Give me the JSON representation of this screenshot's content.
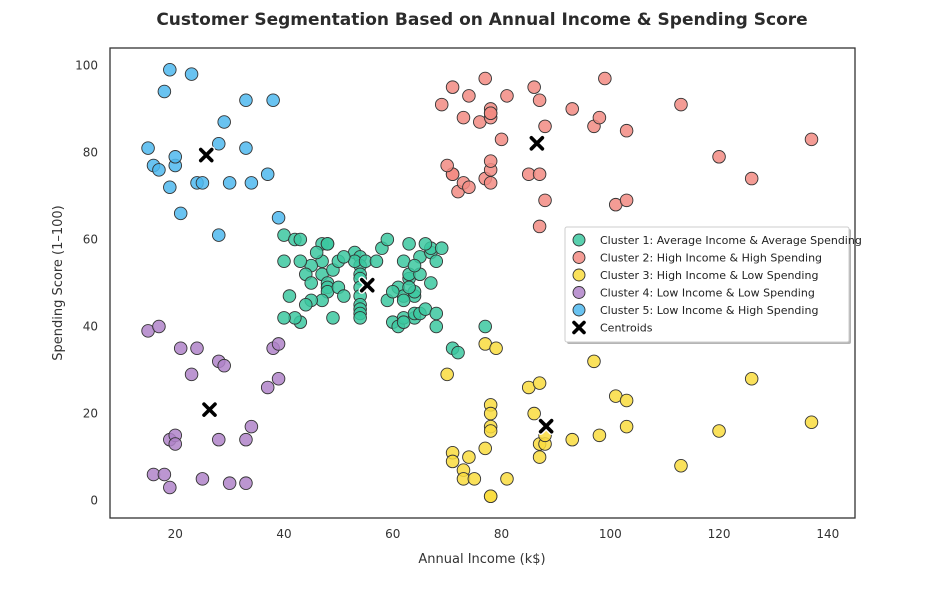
{
  "chart_data": {
    "type": "scatter",
    "title": "Customer Segmentation Based on Annual Income & Spending Score",
    "xlabel": "Annual Income (k$)",
    "ylabel": "Spending Score (1–100)",
    "xlim": [
      8,
      145
    ],
    "ylim": [
      -4,
      104
    ],
    "xticks": [
      20,
      40,
      60,
      80,
      100,
      120,
      140
    ],
    "yticks": [
      0,
      20,
      40,
      60,
      80,
      100
    ],
    "grid": false,
    "legend_position": "center-right",
    "series": [
      {
        "name": "Cluster 1: Average Income & Average Spending",
        "color": "#3cc8a0",
        "points": [
          [
            40,
            61
          ],
          [
            42,
            60
          ],
          [
            43,
            60
          ],
          [
            47,
            59
          ],
          [
            48,
            59
          ],
          [
            48,
            59
          ],
          [
            53,
            57
          ],
          [
            54,
            56
          ],
          [
            54,
            54
          ],
          [
            54,
            52
          ],
          [
            54,
            51
          ],
          [
            54,
            49
          ],
          [
            54,
            47
          ],
          [
            54,
            45
          ],
          [
            54,
            44
          ],
          [
            54,
            43
          ],
          [
            54,
            42
          ],
          [
            53,
            55
          ],
          [
            47,
            55
          ],
          [
            45,
            54
          ],
          [
            44,
            52
          ],
          [
            43,
            55
          ],
          [
            40,
            55
          ],
          [
            46,
            57
          ],
          [
            47,
            52
          ],
          [
            48,
            50
          ],
          [
            48,
            49
          ],
          [
            48,
            48
          ],
          [
            49,
            53
          ],
          [
            50,
            55
          ],
          [
            51,
            56
          ],
          [
            50,
            49
          ],
          [
            51,
            47
          ],
          [
            49,
            42
          ],
          [
            47,
            46
          ],
          [
            45,
            46
          ],
          [
            44,
            45
          ],
          [
            43,
            41
          ],
          [
            42,
            42
          ],
          [
            40,
            42
          ],
          [
            41,
            47
          ],
          [
            45,
            50
          ],
          [
            55,
            55
          ],
          [
            57,
            55
          ],
          [
            58,
            58
          ],
          [
            59,
            60
          ],
          [
            59,
            46
          ],
          [
            60,
            41
          ],
          [
            61,
            40
          ],
          [
            61,
            49
          ],
          [
            62,
            42
          ],
          [
            62,
            47
          ],
          [
            62,
            55
          ],
          [
            63,
            51
          ],
          [
            63,
            52
          ],
          [
            63,
            59
          ],
          [
            64,
            42
          ],
          [
            64,
            43
          ],
          [
            64,
            47
          ],
          [
            64,
            48
          ],
          [
            63,
            49
          ],
          [
            65,
            52
          ],
          [
            65,
            56
          ],
          [
            64,
            54
          ],
          [
            65,
            43
          ],
          [
            66,
            44
          ],
          [
            67,
            57
          ],
          [
            67,
            58
          ],
          [
            67,
            50
          ],
          [
            68,
            55
          ],
          [
            68,
            43
          ],
          [
            68,
            40
          ],
          [
            66,
            59
          ],
          [
            69,
            58
          ],
          [
            71,
            35
          ],
          [
            72,
            34
          ],
          [
            77,
            40
          ],
          [
            62,
            41
          ],
          [
            62,
            46
          ],
          [
            60,
            48
          ]
        ]
      },
      {
        "name": "Cluster 2: High Income & High Spending",
        "color": "#f28b82",
        "points": [
          [
            69,
            91
          ],
          [
            71,
            95
          ],
          [
            73,
            88
          ],
          [
            74,
            93
          ],
          [
            76,
            87
          ],
          [
            77,
            97
          ],
          [
            78,
            90
          ],
          [
            78,
            88
          ],
          [
            78,
            89
          ],
          [
            78,
            89
          ],
          [
            81,
            93
          ],
          [
            80,
            83
          ],
          [
            86,
            95
          ],
          [
            87,
            92
          ],
          [
            88,
            86
          ],
          [
            93,
            90
          ],
          [
            97,
            86
          ],
          [
            98,
            88
          ],
          [
            99,
            97
          ],
          [
            103,
            85
          ],
          [
            113,
            91
          ],
          [
            120,
            79
          ],
          [
            126,
            74
          ],
          [
            137,
            83
          ],
          [
            71,
            75
          ],
          [
            71,
            75
          ],
          [
            70,
            77
          ],
          [
            72,
            71
          ],
          [
            73,
            73
          ],
          [
            74,
            72
          ],
          [
            77,
            74
          ],
          [
            78,
            73
          ],
          [
            78,
            76
          ],
          [
            78,
            78
          ],
          [
            85,
            75
          ],
          [
            87,
            75
          ],
          [
            88,
            69
          ],
          [
            87,
            63
          ],
          [
            101,
            68
          ],
          [
            103,
            69
          ]
        ]
      },
      {
        "name": "Cluster 3: High Income & Low Spending",
        "color": "#f9dc3e",
        "points": [
          [
            70,
            29
          ],
          [
            71,
            11
          ],
          [
            71,
            9
          ],
          [
            73,
            7
          ],
          [
            73,
            5
          ],
          [
            74,
            10
          ],
          [
            75,
            5
          ],
          [
            77,
            12
          ],
          [
            78,
            22
          ],
          [
            78,
            20
          ],
          [
            78,
            17
          ],
          [
            78,
            16
          ],
          [
            78,
            1
          ],
          [
            78,
            1
          ],
          [
            81,
            5
          ],
          [
            85,
            26
          ],
          [
            86,
            20
          ],
          [
            87,
            27
          ],
          [
            87,
            13
          ],
          [
            87,
            10
          ],
          [
            88,
            13
          ],
          [
            88,
            15
          ],
          [
            93,
            14
          ],
          [
            97,
            32
          ],
          [
            98,
            15
          ],
          [
            101,
            24
          ],
          [
            103,
            23
          ],
          [
            103,
            17
          ],
          [
            113,
            8
          ],
          [
            120,
            16
          ],
          [
            126,
            28
          ],
          [
            137,
            18
          ],
          [
            77,
            36
          ],
          [
            79,
            35
          ]
        ]
      },
      {
        "name": "Cluster 4: Low Income & Low Spending",
        "color": "#b084c9",
        "points": [
          [
            15,
            39
          ],
          [
            16,
            6
          ],
          [
            17,
            40
          ],
          [
            18,
            6
          ],
          [
            19,
            3
          ],
          [
            19,
            14
          ],
          [
            20,
            15
          ],
          [
            20,
            13
          ],
          [
            21,
            35
          ],
          [
            23,
            29
          ],
          [
            24,
            35
          ],
          [
            25,
            5
          ],
          [
            28,
            14
          ],
          [
            28,
            32
          ],
          [
            29,
            31
          ],
          [
            30,
            4
          ],
          [
            33,
            4
          ],
          [
            33,
            14
          ],
          [
            34,
            17
          ],
          [
            37,
            26
          ],
          [
            38,
            35
          ],
          [
            39,
            28
          ],
          [
            39,
            36
          ]
        ]
      },
      {
        "name": "Cluster 5: Low Income & High Spending",
        "color": "#4fb8ee",
        "points": [
          [
            15,
            81
          ],
          [
            16,
            77
          ],
          [
            17,
            76
          ],
          [
            18,
            94
          ],
          [
            19,
            99
          ],
          [
            19,
            72
          ],
          [
            20,
            77
          ],
          [
            20,
            79
          ],
          [
            21,
            66
          ],
          [
            23,
            98
          ],
          [
            24,
            73
          ],
          [
            25,
            73
          ],
          [
            28,
            82
          ],
          [
            28,
            61
          ],
          [
            29,
            87
          ],
          [
            30,
            73
          ],
          [
            33,
            81
          ],
          [
            33,
            92
          ],
          [
            34,
            73
          ],
          [
            37,
            75
          ],
          [
            38,
            92
          ],
          [
            39,
            65
          ]
        ]
      }
    ],
    "centroids": {
      "name": "Centroids",
      "color": "#000000",
      "points": [
        [
          55.3,
          49.5
        ],
        [
          86.5,
          82.1
        ],
        [
          88.2,
          17.1
        ],
        [
          26.3,
          20.9
        ],
        [
          25.7,
          79.4
        ]
      ]
    }
  }
}
